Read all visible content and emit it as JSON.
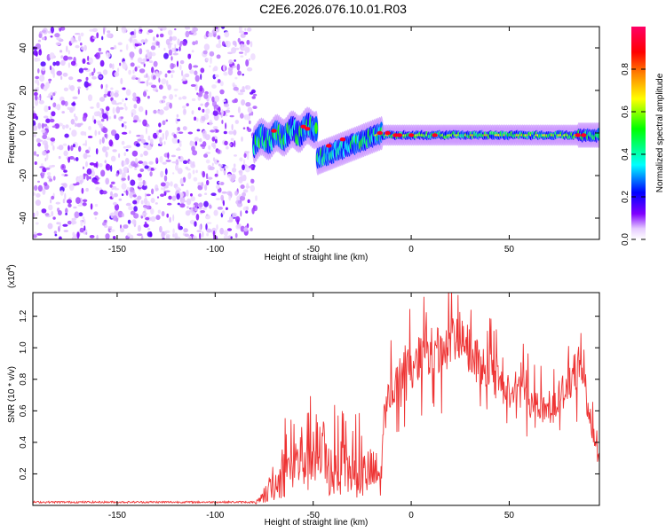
{
  "title": "C2E6.2026.076.10.01.R03",
  "chart_data": [
    {
      "type": "heatmap",
      "name": "spectrogram",
      "xlabel": "Height of straight line (km)",
      "ylabel": "Frequency (Hz)",
      "xlim": [
        -193,
        96
      ],
      "ylim": [
        -50,
        50
      ],
      "xticks": [
        -150,
        -100,
        -50,
        0,
        50
      ],
      "xtick_labels": [
        "-150",
        "-100",
        "-50",
        "0",
        "50"
      ],
      "yticks": [
        -40,
        -20,
        0,
        20,
        40
      ],
      "ytick_labels": [
        "-40",
        "-20",
        "0",
        "20",
        "40"
      ],
      "colorbar": {
        "label": "Normalized spectral amplitude",
        "range": [
          0,
          1
        ],
        "ticks": [
          0.0,
          0.2,
          0.4,
          0.6,
          0.8
        ],
        "tick_labels": [
          "0.0",
          "0.2",
          "0.4",
          "0.6",
          "0.8"
        ],
        "colormap": [
          "#ffffff",
          "#e6ccff",
          "#8000ff",
          "#0000ff",
          "#00ffff",
          "#00ff00",
          "#ffff00",
          "#ff8000",
          "#ff0000",
          "#ff0066"
        ]
      },
      "regions": [
        {
          "desc": "noise",
          "x_range": [
            -193,
            -80
          ],
          "freq_range": [
            -50,
            50
          ],
          "amplitude": 0.15
        },
        {
          "desc": "echo",
          "x_range": [
            -80,
            -48
          ],
          "freq_center_km": [
            -80,
            -48
          ],
          "freq_center_hz": [
            -4,
            3
          ],
          "amplitude": 0.45
        },
        {
          "desc": "echo",
          "x_range": [
            -48,
            -15
          ],
          "freq_center_km": [
            -48,
            -15
          ],
          "freq_center_hz": [
            -12,
            0
          ],
          "amplitude": 0.5
        },
        {
          "desc": "echo",
          "x_range": [
            -15,
            96
          ],
          "freq_center_hz": -1,
          "amplitude": 0.75
        }
      ]
    },
    {
      "type": "line",
      "name": "snr",
      "xlabel": "Height of straight line (km)",
      "ylabel": "SNR (10 * v/v)",
      "yscale_label": "(x10",
      "yscale_exp": "4",
      "yscale_close": ")",
      "xlim": [
        -193,
        96
      ],
      "ylim": [
        0,
        1.35
      ],
      "xticks": [
        -150,
        -100,
        -50,
        0,
        50
      ],
      "xtick_labels": [
        "-150",
        "-100",
        "-50",
        "0",
        "50"
      ],
      "yticks": [
        0.2,
        0.4,
        0.6,
        0.8,
        1.0,
        1.2
      ],
      "ytick_labels": [
        "0.2",
        "0.4",
        "0.6",
        "0.8",
        "1.0",
        "1.2"
      ],
      "color": "#ee3333",
      "envelope": {
        "x": [
          -193,
          -150,
          -100,
          -80,
          -75,
          -70,
          -65,
          -60,
          -55,
          -50,
          -45,
          -40,
          -35,
          -30,
          -25,
          -20,
          -15,
          -14,
          -10,
          -5,
          0,
          5,
          10,
          15,
          20,
          25,
          30,
          35,
          40,
          45,
          50,
          55,
          60,
          65,
          70,
          75,
          80,
          85,
          88,
          90,
          93,
          96
        ],
        "y": [
          0.02,
          0.02,
          0.02,
          0.02,
          0.06,
          0.18,
          0.28,
          0.36,
          0.45,
          0.52,
          0.38,
          0.3,
          0.33,
          0.3,
          0.27,
          0.3,
          0.25,
          0.62,
          0.76,
          0.86,
          0.9,
          0.98,
          1.02,
          1.0,
          1.05,
          1.1,
          1.0,
          0.92,
          0.88,
          0.8,
          0.74,
          0.78,
          0.7,
          0.66,
          0.62,
          0.7,
          0.78,
          0.9,
          0.92,
          0.6,
          0.45,
          0.28
        ]
      }
    }
  ]
}
